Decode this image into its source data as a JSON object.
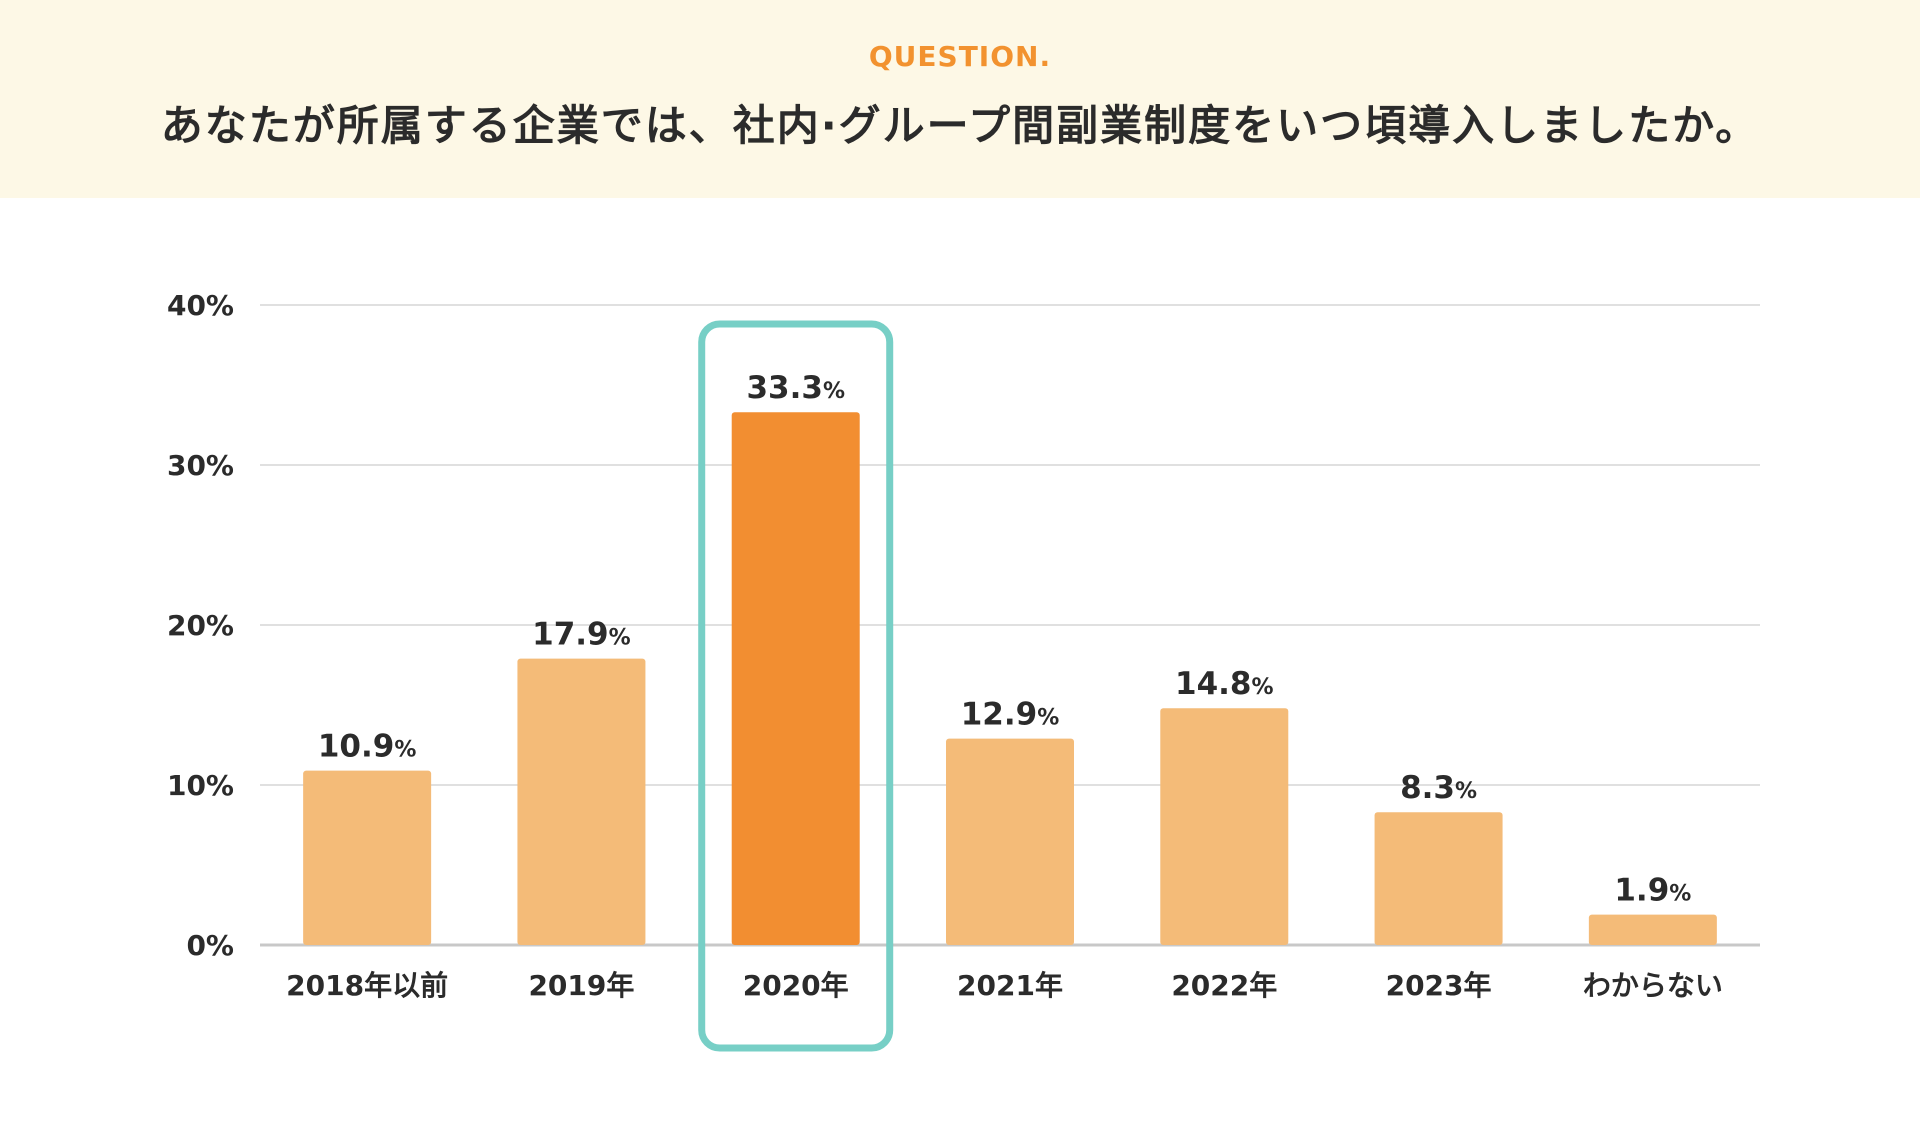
{
  "header": {
    "label": "QUESTION.",
    "title": "あなたが所属する企業では、社内·グループ間副業制度をいつ頃導入しましたか。"
  },
  "colors": {
    "header_bg": "#fdf8e6",
    "label": "#f2922f",
    "bar": "#f4bb78",
    "bar_highlight": "#f28e31",
    "highlight_frame": "#77cfc6",
    "grid": "#d6d6d6",
    "axis": "#c8c8c8",
    "text": "#2b2b2b"
  },
  "chart_data": {
    "type": "bar",
    "title": "あなたが所属する企業では、社内·グループ間副業制度をいつ頃導入しましたか。",
    "categories": [
      "2018年以前",
      "2019年",
      "2020年",
      "2021年",
      "2022年",
      "2023年",
      "わからない"
    ],
    "values": [
      10.9,
      17.9,
      33.3,
      12.9,
      14.8,
      8.3,
      1.9
    ],
    "value_labels": [
      "10.9",
      "17.9",
      "33.3",
      "12.9",
      "14.8",
      "8.3",
      "1.9"
    ],
    "value_unit": "%",
    "highlight_index": 2,
    "ylim": [
      0,
      40
    ],
    "yticks": [
      0,
      10,
      20,
      30,
      40
    ],
    "ytick_labels": [
      "0%",
      "10%",
      "20%",
      "30%",
      "40%"
    ],
    "grid": true,
    "xlabel": "",
    "ylabel": ""
  }
}
